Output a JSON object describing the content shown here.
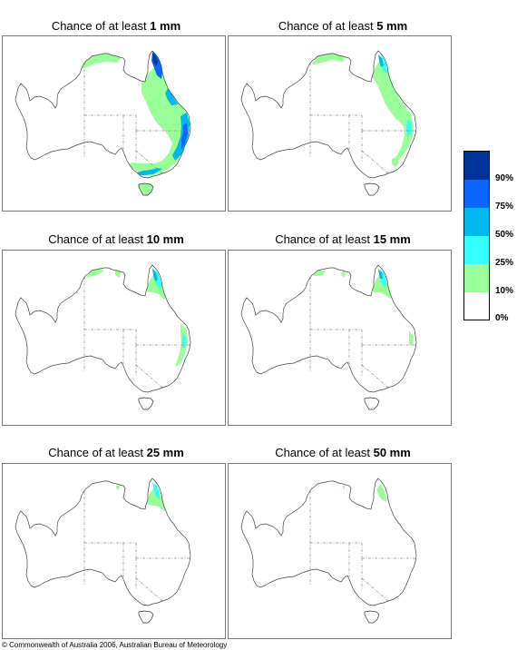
{
  "panels": [
    {
      "prefix": "Chance of at least ",
      "amount": "1 mm"
    },
    {
      "prefix": "Chance of at least ",
      "amount": "5 mm"
    },
    {
      "prefix": "Chance of at least ",
      "amount": "10 mm"
    },
    {
      "prefix": "Chance of at least ",
      "amount": "15 mm"
    },
    {
      "prefix": "Chance of at least ",
      "amount": "25 mm"
    },
    {
      "prefix": "Chance of at least ",
      "amount": "50 mm"
    }
  ],
  "legend": {
    "labels": [
      "90%",
      "75%",
      "50%",
      "25%",
      "10%",
      "0%"
    ],
    "colors": [
      "#003399",
      "#0a66ff",
      "#00b8f0",
      "#33ffff",
      "#99ff99",
      "#ffffff"
    ]
  },
  "copyright": "© Commonwealth of Australia 2006, Australian Bureau of Meteorology"
}
